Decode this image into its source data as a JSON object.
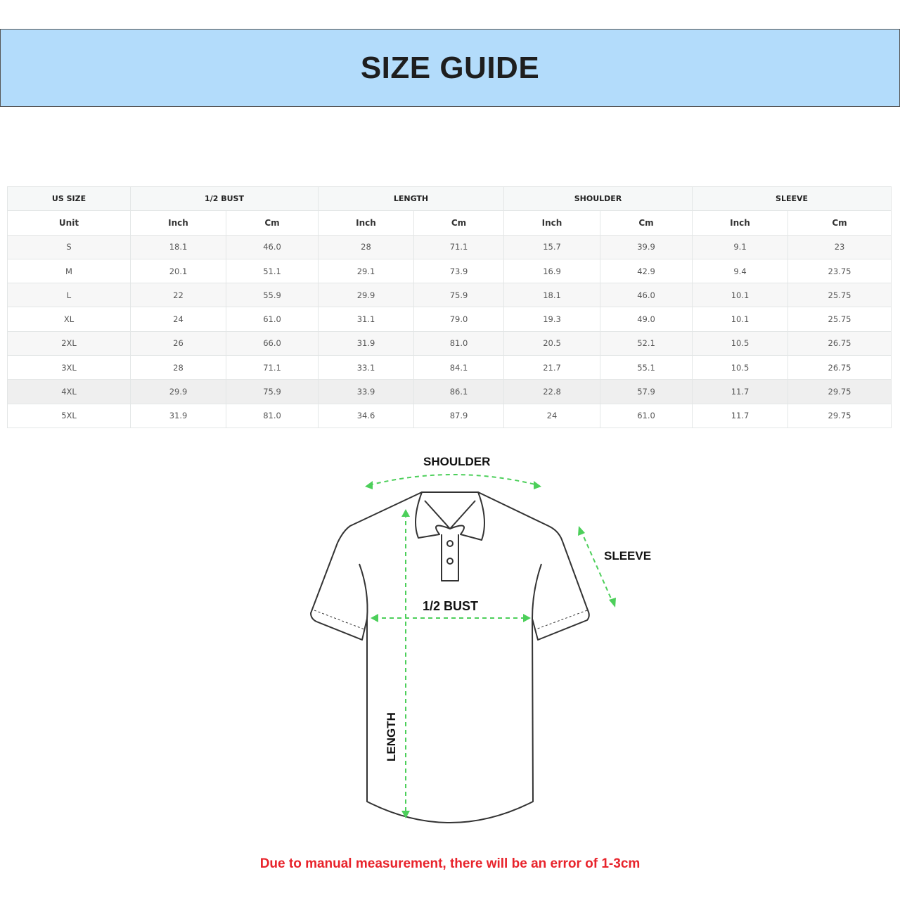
{
  "header": {
    "title": "SIZE GUIDE",
    "background": "#b3dcfb"
  },
  "table": {
    "group_headers": [
      "US SIZE",
      "1/2 BUST",
      "LENGTH",
      "SHOULDER",
      "SLEEVE"
    ],
    "sub_headers": [
      "Unit",
      "Inch",
      "Cm",
      "Inch",
      "Cm",
      "Inch",
      "Cm",
      "Inch",
      "Cm"
    ],
    "rows": [
      [
        "S",
        "18.1",
        "46.0",
        "28",
        "71.1",
        "15.7",
        "39.9",
        "9.1",
        "23"
      ],
      [
        "M",
        "20.1",
        "51.1",
        "29.1",
        "73.9",
        "16.9",
        "42.9",
        "9.4",
        "23.75"
      ],
      [
        "L",
        "22",
        "55.9",
        "29.9",
        "75.9",
        "18.1",
        "46.0",
        "10.1",
        "25.75"
      ],
      [
        "XL",
        "24",
        "61.0",
        "31.1",
        "79.0",
        "19.3",
        "49.0",
        "10.1",
        "25.75"
      ],
      [
        "2XL",
        "26",
        "66.0",
        "31.9",
        "81.0",
        "20.5",
        "52.1",
        "10.5",
        "26.75"
      ],
      [
        "3XL",
        "28",
        "71.1",
        "33.1",
        "84.1",
        "21.7",
        "55.1",
        "10.5",
        "26.75"
      ],
      [
        "4XL",
        "29.9",
        "75.9",
        "33.9",
        "86.1",
        "22.8",
        "57.9",
        "11.7",
        "29.75"
      ],
      [
        "5XL",
        "31.9",
        "81.0",
        "34.6",
        "87.9",
        "24",
        "61.0",
        "11.7",
        "29.75"
      ]
    ]
  },
  "diagram": {
    "shoulder_label": "SHOULDER",
    "sleeve_label": "SLEEVE",
    "bust_label": "1/2 BUST",
    "length_label": "LENGTH",
    "arrow_color": "#4ccf5a"
  },
  "note": {
    "text": "Due to manual measurement, there will be an error of 1-3cm",
    "color": "#e8232b"
  }
}
